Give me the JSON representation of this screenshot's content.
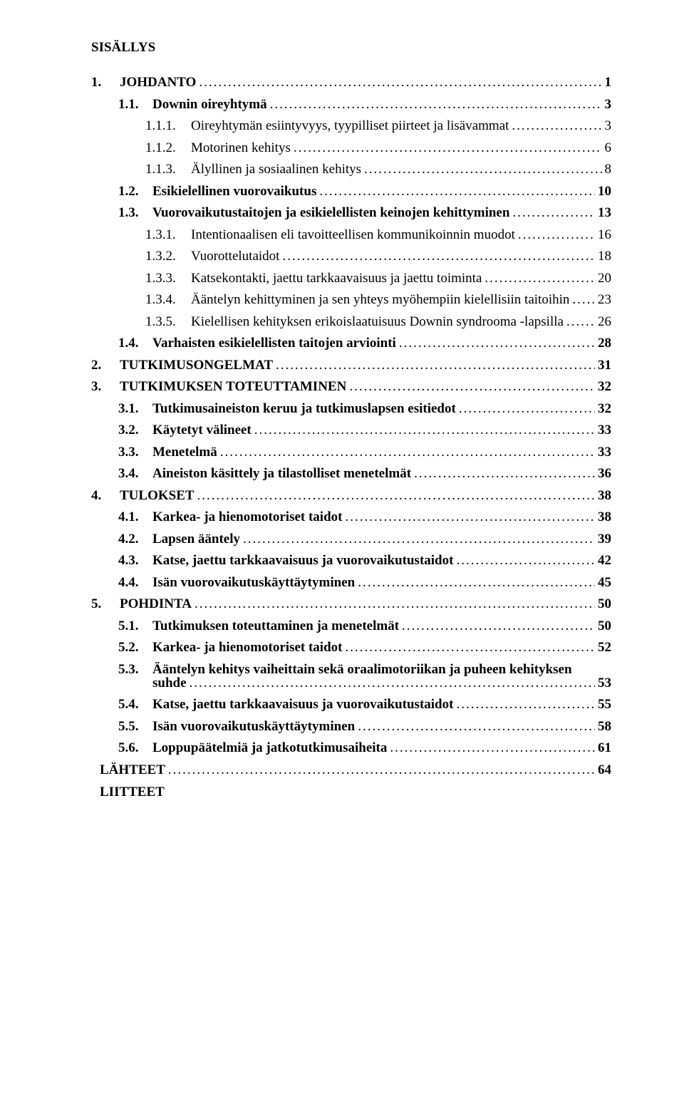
{
  "title": "SISÄLLYS",
  "toc": [
    {
      "level": 1,
      "bold": true,
      "num": "1.",
      "text": "JOHDANTO",
      "page": "1"
    },
    {
      "level": 2,
      "bold": true,
      "num": "1.1.",
      "text": "Downin oireyhtymä",
      "page": "3"
    },
    {
      "level": 3,
      "bold": false,
      "num": "1.1.1.",
      "text": "Oireyhtymän esiintyvyys, tyypilliset piirteet ja lisävammat",
      "page": "3"
    },
    {
      "level": 3,
      "bold": false,
      "num": "1.1.2.",
      "text": "Motorinen kehitys",
      "page": "6"
    },
    {
      "level": 3,
      "bold": false,
      "num": "1.1.3.",
      "text": "Älyllinen ja sosiaalinen kehitys",
      "page": "8"
    },
    {
      "level": 2,
      "bold": true,
      "num": "1.2.",
      "text": "Esikielellinen vuorovaikutus",
      "page": "10"
    },
    {
      "level": 2,
      "bold": true,
      "num": "1.3.",
      "text": "Vuorovaikutustaitojen ja esikielellisten keinojen kehittyminen",
      "page": "13"
    },
    {
      "level": 3,
      "bold": false,
      "num": "1.3.1.",
      "text": "Intentionaalisen eli tavoitteellisen kommunikoinnin muodot",
      "page": "16"
    },
    {
      "level": 3,
      "bold": false,
      "num": "1.3.2.",
      "text": "Vuorottelutaidot",
      "page": "18"
    },
    {
      "level": 3,
      "bold": false,
      "num": "1.3.3.",
      "text": "Katsekontakti, jaettu tarkkaavaisuus ja jaettu toiminta",
      "page": "20"
    },
    {
      "level": 3,
      "bold": false,
      "num": "1.3.4.",
      "text": "Ääntelyn kehittyminen ja sen yhteys myöhempiin kielellisiin taitoihin",
      "page": "23"
    },
    {
      "level": 3,
      "bold": false,
      "num": "1.3.5.",
      "text": "Kielellisen kehityksen erikoislaatuisuus Downin syndrooma -lapsilla",
      "page": "26"
    },
    {
      "level": 2,
      "bold": true,
      "num": "1.4.",
      "text": "Varhaisten esikielellisten taitojen arviointi",
      "page": "28"
    },
    {
      "level": 1,
      "bold": true,
      "num": "2.",
      "text": "TUTKIMUSONGELMAT",
      "page": "31"
    },
    {
      "level": 1,
      "bold": true,
      "num": "3.",
      "text": "TUTKIMUKSEN TOTEUTTAMINEN",
      "page": "32"
    },
    {
      "level": 2,
      "bold": true,
      "num": "3.1.",
      "text": "Tutkimusaineiston keruu ja tutkimuslapsen esitiedot",
      "page": "32"
    },
    {
      "level": 2,
      "bold": true,
      "num": "3.2.",
      "text": "Käytetyt välineet",
      "page": "33"
    },
    {
      "level": 2,
      "bold": true,
      "num": "3.3.",
      "text": "Menetelmä",
      "page": "33"
    },
    {
      "level": 2,
      "bold": true,
      "num": "3.4.",
      "text": "Aineiston käsittely ja tilastolliset menetelmät",
      "page": "36"
    },
    {
      "level": 1,
      "bold": true,
      "num": "4.",
      "text": "TULOKSET",
      "page": "38"
    },
    {
      "level": 2,
      "bold": true,
      "num": "4.1.",
      "text": "Karkea- ja hienomotoriset taidot",
      "page": "38"
    },
    {
      "level": 2,
      "bold": true,
      "num": "4.2.",
      "text": "Lapsen ääntely",
      "page": "39"
    },
    {
      "level": 2,
      "bold": true,
      "num": "4.3.",
      "text": "Katse, jaettu tarkkaavaisuus ja vuorovaikutustaidot",
      "page": "42"
    },
    {
      "level": 2,
      "bold": true,
      "num": "4.4.",
      "text": "Isän vuorovaikutuskäyttäytyminen",
      "page": "45"
    },
    {
      "level": 1,
      "bold": true,
      "num": "5.",
      "text": "POHDINTA",
      "page": "50"
    },
    {
      "level": 2,
      "bold": true,
      "num": "5.1.",
      "text": "Tutkimuksen toteuttaminen ja menetelmät",
      "page": "50"
    },
    {
      "level": 2,
      "bold": true,
      "num": "5.2.",
      "text": "Karkea- ja hienomotoriset taidot",
      "page": "52"
    },
    {
      "level": 2,
      "bold": true,
      "num": "5.3.",
      "text_line1": "Ääntelyn kehitys vaiheittain sekä oraalimotoriikan ja puheen kehityksen",
      "text_line2": "suhde",
      "page": "53",
      "wrap": true
    },
    {
      "level": 2,
      "bold": true,
      "num": "5.4.",
      "text": "Katse, jaettu tarkkaavaisuus ja vuorovaikutustaidot",
      "page": "55"
    },
    {
      "level": 2,
      "bold": true,
      "num": "5.5.",
      "text": "Isän vuorovaikutuskäyttäytyminen",
      "page": "58"
    },
    {
      "level": 2,
      "bold": true,
      "num": "5.6.",
      "text": "Loppupäätelmiä ja jatkotutkimusaiheita",
      "page": "61"
    },
    {
      "level": 0,
      "bold": true,
      "num": "",
      "text": "LÄHTEET",
      "page": "64",
      "extra_indent": true
    }
  ],
  "liitteet": "LIITTEET"
}
